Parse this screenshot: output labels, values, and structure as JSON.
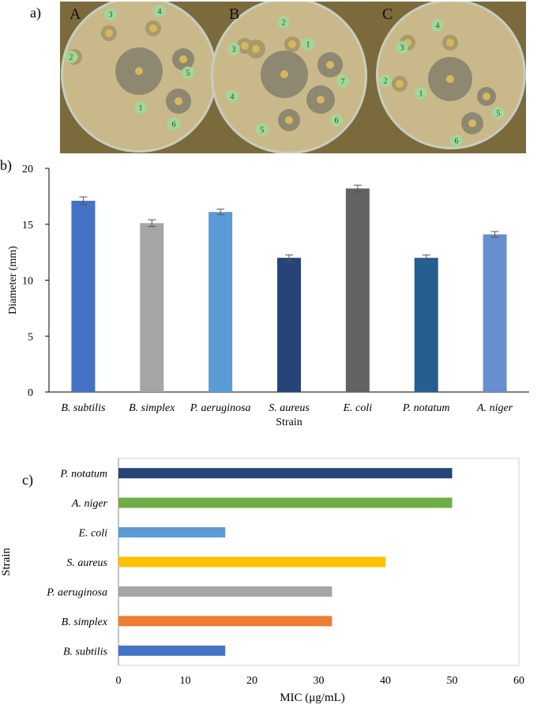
{
  "panels": {
    "a": "a)",
    "b": "b)",
    "c": "c)"
  },
  "photo": {
    "plates": [
      {
        "label": "A",
        "disc_labels": [
          "3",
          "4",
          "2",
          "5",
          "1",
          "6"
        ]
      },
      {
        "label": "B",
        "disc_labels": [
          "2",
          "1",
          "3",
          "7",
          "4",
          "6",
          "5"
        ]
      },
      {
        "label": "C",
        "disc_labels": [
          "4",
          "3",
          "2",
          "1",
          "5",
          "6"
        ]
      }
    ],
    "colors": {
      "background": "#7a6a3c",
      "agar": "#c9b98a",
      "zone": "#8e8870",
      "disc": "#d4b760",
      "tag": "#9fd99a"
    }
  },
  "chart_data": [
    {
      "type": "bar",
      "panel": "b",
      "categories": [
        "B. subtilis",
        "B. simplex",
        "P. aeruginosa",
        "S. aureus",
        "E. coli",
        "P. notatum",
        "A. niger"
      ],
      "values": [
        17.1,
        15.1,
        16.1,
        12.0,
        18.2,
        12.0,
        14.1
      ],
      "errors": [
        0.35,
        0.3,
        0.25,
        0.25,
        0.3,
        0.25,
        0.25
      ],
      "colors": [
        "#4472c4",
        "#a5a5a5",
        "#5b9bd5",
        "#264478",
        "#636363",
        "#255e91",
        "#698ed0"
      ],
      "xlabel": "Strain",
      "ylabel": "Diameter (mm)",
      "ylim": [
        0,
        20
      ],
      "yticks": [
        "0",
        "5",
        "10",
        "15",
        "20"
      ],
      "grid": false
    },
    {
      "type": "bar",
      "orientation": "horizontal",
      "panel": "c",
      "categories": [
        "P. notatum",
        "A. niger",
        "E. coli",
        "S. aureus",
        "P. aeruginosa",
        "B. simplex",
        "B. subtilis"
      ],
      "values": [
        50,
        50,
        16,
        40,
        32,
        32,
        16
      ],
      "colors": [
        "#264478",
        "#70ad47",
        "#5b9bd5",
        "#ffc000",
        "#a5a5a5",
        "#ed7d31",
        "#4472c4"
      ],
      "xlabel": "MIC (μg/mL)",
      "ylabel": "Strain",
      "xlim": [
        0,
        60
      ],
      "xticks": [
        "0",
        "10",
        "20",
        "30",
        "40",
        "50",
        "60"
      ],
      "grid": false
    }
  ]
}
